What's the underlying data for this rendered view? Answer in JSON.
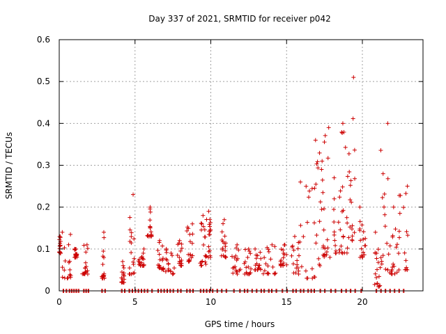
{
  "chart_data": {
    "type": "scatter",
    "title": "Day 337 of 2021, SRMTID for receiver p042",
    "xlabel": "GPS time / hours",
    "ylabel": "SRMTID / TECUs",
    "xlim": [
      0,
      24
    ],
    "ylim": [
      0,
      0.6
    ],
    "xticks": [
      0,
      5,
      10,
      15,
      20
    ],
    "yticks": [
      0,
      0.1,
      0.2,
      0.3,
      0.4,
      0.5,
      0.6
    ],
    "xtick_labels": [
      "0",
      "5",
      "10",
      "15",
      "20"
    ],
    "ytick_labels": [
      "0",
      "0.1",
      "0.2",
      "0.3",
      "0.4",
      "0.5",
      "0.6"
    ],
    "grid": true,
    "marker": "+",
    "color": "#cc0000",
    "series": [
      {
        "name": "SRMTID",
        "clusters": [
          {
            "x": [
              0.0,
              0.1
            ],
            "y": [
              0.09,
              0.13
            ]
          },
          {
            "x": [
              0.2,
              0.8
            ],
            "y": [
              0.03,
              0.14
            ]
          },
          {
            "x": [
              1.0,
              1.2
            ],
            "y": [
              0.08,
              0.1
            ]
          },
          {
            "x": [
              1.5,
              1.9
            ],
            "y": [
              0.04,
              0.11
            ]
          },
          {
            "x": [
              2.8,
              3.0
            ],
            "y": [
              0.03,
              0.14
            ]
          },
          {
            "x": [
              4.1,
              4.3
            ],
            "y": [
              0.02,
              0.07
            ]
          },
          {
            "x": [
              4.6,
              5.0
            ],
            "y": [
              0.04,
              0.23
            ]
          },
          {
            "x": [
              5.2,
              5.6
            ],
            "y": [
              0.06,
              0.1
            ]
          },
          {
            "x": [
              5.8,
              6.1
            ],
            "y": [
              0.13,
              0.2
            ]
          },
          {
            "x": [
              6.5,
              6.9
            ],
            "y": [
              0.05,
              0.12
            ]
          },
          {
            "x": [
              7.0,
              7.6
            ],
            "y": [
              0.04,
              0.1
            ]
          },
          {
            "x": [
              7.8,
              8.1
            ],
            "y": [
              0.06,
              0.12
            ]
          },
          {
            "x": [
              8.4,
              8.8
            ],
            "y": [
              0.07,
              0.16
            ]
          },
          {
            "x": [
              9.3,
              9.7
            ],
            "y": [
              0.06,
              0.18
            ]
          },
          {
            "x": [
              9.7,
              10.0
            ],
            "y": [
              0.08,
              0.19
            ]
          },
          {
            "x": [
              10.7,
              11.0
            ],
            "y": [
              0.08,
              0.17
            ]
          },
          {
            "x": [
              11.4,
              12.0
            ],
            "y": [
              0.04,
              0.11
            ]
          },
          {
            "x": [
              12.2,
              12.7
            ],
            "y": [
              0.04,
              0.1
            ]
          },
          {
            "x": [
              12.9,
              13.3
            ],
            "y": [
              0.05,
              0.1
            ]
          },
          {
            "x": [
              13.4,
              14.3
            ],
            "y": [
              0.04,
              0.11
            ]
          },
          {
            "x": [
              14.6,
              15.1
            ],
            "y": [
              0.06,
              0.11
            ]
          },
          {
            "x": [
              15.3,
              15.9
            ],
            "y": [
              0.04,
              0.13
            ]
          },
          {
            "x": [
              15.9,
              16.9
            ],
            "y": [
              0.03,
              0.26
            ]
          },
          {
            "x": [
              16.9,
              17.4
            ],
            "y": [
              0.06,
              0.36
            ]
          },
          {
            "x": [
              17.4,
              18.0
            ],
            "y": [
              0.08,
              0.39
            ]
          },
          {
            "x": [
              18.1,
              18.6
            ],
            "y": [
              0.09,
              0.27
            ]
          },
          {
            "x": [
              18.6,
              19.1
            ],
            "y": [
              0.09,
              0.4
            ]
          },
          {
            "x": [
              19.1,
              19.5
            ],
            "y": [
              0.12,
              0.51
            ]
          },
          {
            "x": [
              19.8,
              20.2
            ],
            "y": [
              0.08,
              0.2
            ]
          },
          {
            "x": [
              20.8,
              21.2
            ],
            "y": [
              0.01,
              0.14
            ]
          },
          {
            "x": [
              21.2,
              21.8
            ],
            "y": [
              0.05,
              0.4
            ]
          },
          {
            "x": [
              21.8,
              22.3
            ],
            "y": [
              0.04,
              0.2
            ]
          },
          {
            "x": [
              22.3,
              23.0
            ],
            "y": [
              0.05,
              0.25
            ]
          }
        ],
        "zero_points_x": [
          0.25,
          0.45,
          0.65,
          0.8,
          0.95,
          1.1,
          1.25,
          1.6,
          1.75,
          1.9,
          2.8,
          3.0,
          4.1,
          4.3,
          4.6,
          4.8,
          5.0,
          5.2,
          5.4,
          5.6,
          5.8,
          6.1,
          6.5,
          6.7,
          6.9,
          7.1,
          7.3,
          7.5,
          7.8,
          8.0,
          8.4,
          8.6,
          8.8,
          9.3,
          9.5,
          9.7,
          9.9,
          10.1,
          10.4,
          10.7,
          11.0,
          11.5,
          11.9,
          12.2,
          12.4,
          12.7,
          13.0,
          13.3,
          13.5,
          13.8,
          14.0,
          14.3,
          14.7,
          15.0,
          15.4,
          15.6,
          15.9,
          16.1,
          16.4,
          16.6,
          16.8,
          17.2,
          17.5,
          17.9,
          18.2,
          18.6,
          18.9,
          19.2,
          19.5,
          19.9,
          20.9,
          21.2,
          21.5,
          21.8,
          22.1,
          22.4,
          22.7
        ]
      }
    ]
  }
}
